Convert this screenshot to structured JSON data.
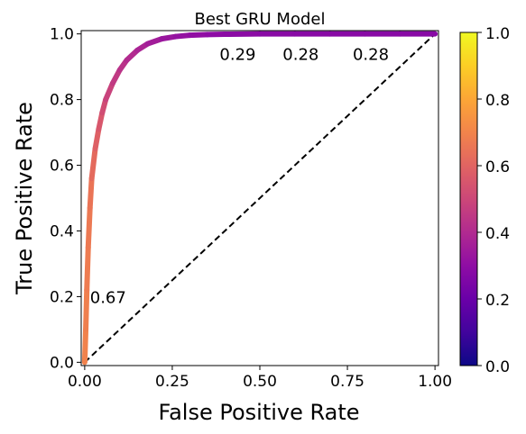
{
  "chart_data": {
    "type": "line",
    "title": "Best GRU Model",
    "xlabel": "False Positive Rate",
    "ylabel": "True Positive Rate",
    "xlim": [
      -0.01,
      1.01
    ],
    "ylim": [
      -0.01,
      1.01
    ],
    "xticks": [
      "0.00",
      "0.25",
      "0.50",
      "0.75",
      "1.00"
    ],
    "xtick_values": [
      0.0,
      0.25,
      0.5,
      0.75,
      1.0
    ],
    "yticks": [
      "0.0",
      "0.2",
      "0.4",
      "0.6",
      "0.8",
      "1.0"
    ],
    "ytick_values": [
      0.0,
      0.2,
      0.4,
      0.6,
      0.8,
      1.0
    ],
    "series": [
      {
        "style": "colored-by-threshold",
        "x": [
          0.0,
          0.003,
          0.006,
          0.01,
          0.015,
          0.02,
          0.03,
          0.04,
          0.05,
          0.06,
          0.08,
          0.1,
          0.12,
          0.15,
          0.18,
          0.22,
          0.26,
          0.3,
          0.35,
          0.4,
          0.5,
          0.6,
          0.7,
          0.8,
          0.9,
          1.0
        ],
        "y": [
          0.0,
          0.1,
          0.22,
          0.35,
          0.47,
          0.56,
          0.65,
          0.71,
          0.76,
          0.8,
          0.85,
          0.89,
          0.92,
          0.95,
          0.97,
          0.985,
          0.992,
          0.996,
          0.998,
          0.999,
          1.0,
          1.0,
          1.0,
          1.0,
          1.0,
          1.0
        ],
        "threshold": [
          0.7,
          0.69,
          0.68,
          0.67,
          0.66,
          0.64,
          0.6,
          0.57,
          0.54,
          0.5,
          0.47,
          0.44,
          0.42,
          0.39,
          0.37,
          0.34,
          0.32,
          0.31,
          0.3,
          0.29,
          0.29,
          0.28,
          0.28,
          0.28,
          0.28,
          0.28
        ]
      },
      {
        "style": "dashed-diagonal",
        "x": [
          0,
          1
        ],
        "y": [
          0,
          1
        ]
      }
    ],
    "annotations": [
      {
        "text": "0.67",
        "x": 0.01,
        "y": 0.2
      },
      {
        "text": "0.29",
        "x": 0.38,
        "y": 0.94
      },
      {
        "text": "0.28",
        "x": 0.56,
        "y": 0.94
      },
      {
        "text": "0.28",
        "x": 0.76,
        "y": 0.94
      }
    ],
    "colorbar": {
      "colormap": "plasma",
      "range": [
        0.0,
        1.0
      ],
      "ticks": [
        "0.0",
        "0.2",
        "0.4",
        "0.6",
        "0.8",
        "1.0"
      ],
      "tick_values": [
        0.0,
        0.2,
        0.4,
        0.6,
        0.8,
        1.0
      ]
    },
    "grid": false,
    "legend": "none"
  }
}
